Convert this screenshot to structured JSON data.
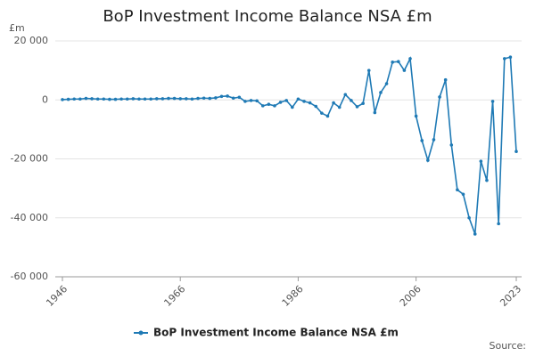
{
  "chart_data": {
    "type": "line",
    "title": "BoP Investment Income Balance NSA £m",
    "ylabel": "£m",
    "source": "Source:",
    "x": [
      1946,
      1947,
      1948,
      1949,
      1950,
      1951,
      1952,
      1953,
      1954,
      1955,
      1956,
      1957,
      1958,
      1959,
      1960,
      1961,
      1962,
      1963,
      1964,
      1965,
      1966,
      1967,
      1968,
      1969,
      1970,
      1971,
      1972,
      1973,
      1974,
      1975,
      1976,
      1977,
      1978,
      1979,
      1980,
      1981,
      1982,
      1983,
      1984,
      1985,
      1986,
      1987,
      1988,
      1989,
      1990,
      1991,
      1992,
      1993,
      1994,
      1995,
      1996,
      1997,
      1998,
      1999,
      2000,
      2001,
      2002,
      2003,
      2004,
      2005,
      2006,
      2007,
      2008,
      2009,
      2010,
      2011,
      2012,
      2013,
      2014,
      2015,
      2016,
      2017,
      2018,
      2019,
      2020,
      2021,
      2022,
      2023
    ],
    "series": [
      {
        "name": "BoP Investment Income Balance NSA £m",
        "color": "#1f7ab5",
        "values": [
          100,
          200,
          300,
          300,
          500,
          400,
          300,
          300,
          200,
          200,
          300,
          300,
          400,
          300,
          300,
          300,
          400,
          400,
          500,
          500,
          400,
          400,
          300,
          500,
          600,
          500,
          700,
          1200,
          1300,
          600,
          900,
          -500,
          -200,
          -300,
          -2000,
          -1500,
          -2000,
          -800,
          -200,
          -2500,
          300,
          -500,
          -1000,
          -2200,
          -4500,
          -5500,
          -1000,
          -2500,
          1800,
          -200,
          -2300,
          -1200,
          10000,
          -4300,
          2500,
          5500,
          12800,
          13000,
          10000,
          14000,
          -5500,
          -13800,
          -20500,
          -13500,
          1000,
          6800,
          -15300,
          -30500,
          -32000,
          -40000,
          -45500,
          -20800,
          -27300,
          -500,
          -42000,
          14000,
          14500,
          -17500
        ]
      }
    ],
    "xlim": [
      1946,
      2023
    ],
    "xticks": [
      1946,
      1966,
      1986,
      2006,
      2023
    ],
    "ylim": [
      -60000,
      20000
    ],
    "yticks": [
      {
        "value": -60000,
        "label": "-60 000"
      },
      {
        "value": -40000,
        "label": "-40 000"
      },
      {
        "value": -20000,
        "label": "-20 000"
      },
      0,
      {
        "value": 20000,
        "label": "20 000"
      }
    ],
    "grid": true
  }
}
